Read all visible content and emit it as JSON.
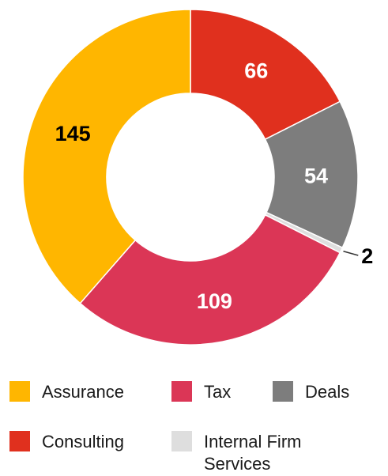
{
  "chart_data": {
    "type": "pie",
    "variant": "donut",
    "title": "",
    "slices": [
      {
        "label": "Consulting",
        "value": 66,
        "color": "#E0301E",
        "label_color": "#ffffff"
      },
      {
        "label": "Deals",
        "value": 54,
        "color": "#7D7D7D",
        "label_color": "#ffffff"
      },
      {
        "label": "Internal Firm Services",
        "value": 2,
        "color": "#DEDEDE",
        "label_color": "#000000",
        "label_outside": true
      },
      {
        "label": "Tax",
        "value": 109,
        "color": "#DB3656",
        "label_color": "#ffffff"
      },
      {
        "label": "Assurance",
        "value": 145,
        "color": "#FFB600",
        "label_color": "#000000"
      }
    ],
    "start": "top",
    "direction": "clockwise",
    "legend_position": "bottom"
  },
  "legend": [
    {
      "label": "Assurance",
      "color": "#FFB600"
    },
    {
      "label": "Tax",
      "color": "#DB3656"
    },
    {
      "label": "Deals",
      "color": "#7D7D7D"
    },
    {
      "label": "Consulting",
      "color": "#E0301E"
    },
    {
      "label": "Internal Firm Services",
      "color": "#DEDEDE"
    }
  ]
}
